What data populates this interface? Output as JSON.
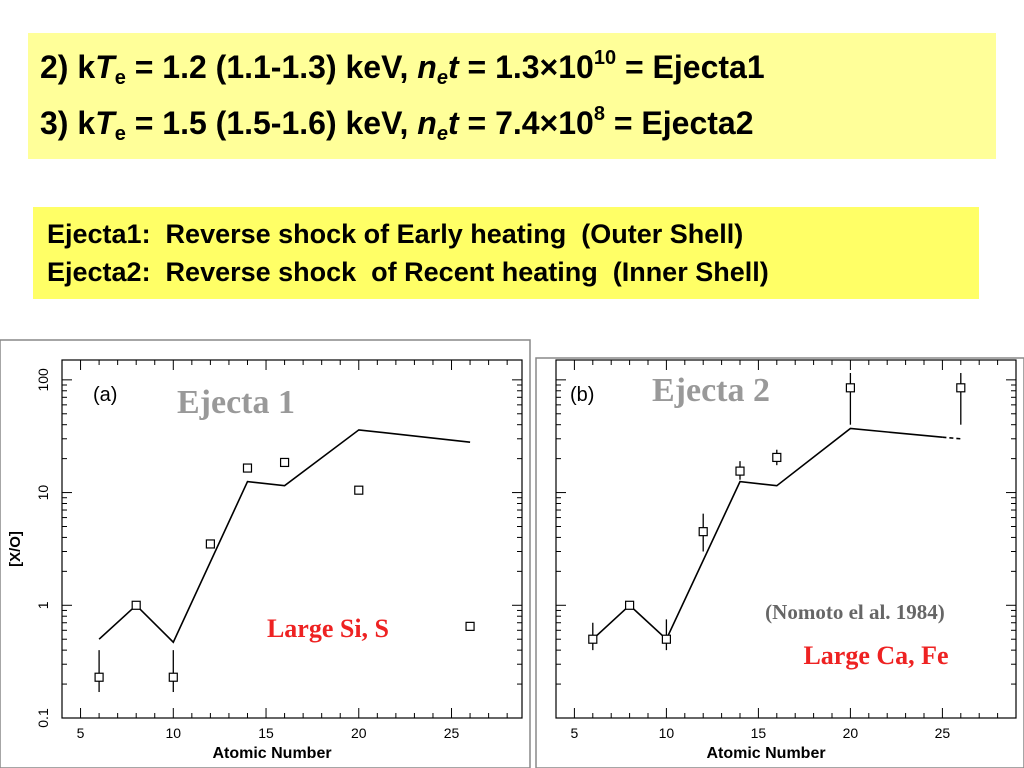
{
  "slide": {
    "line1": {
      "prefix": "2) k",
      "T": "T",
      "e_sub": "e",
      "value": " = 1.2 (1.1-1.3) keV, ",
      "n": "n",
      "n_sub": "e",
      "t": "t",
      "eq": " = 1.3",
      "times": "×",
      "base": "10",
      "exp": "10",
      "tail": " = Ejecta1"
    },
    "line2": {
      "prefix": "3) k",
      "T": "T",
      "e_sub": "e",
      "value": " = 1.5 (1.5-1.6) keV, ",
      "n": "n",
      "n_sub": "e",
      "t": "t",
      "eq": " = 7.4",
      "times": "×",
      "base": "10",
      "exp": "8",
      "tail": "  = Ejecta2"
    },
    "ejecta1_desc": "Ejecta1:  Reverse shock of Early heating  (Outer Shell)",
    "ejecta2_desc": "Ejecta2:  Reverse shock  of Recent heating  (Inner Shell)",
    "colors": {
      "box_top": "#ffff99",
      "box_mid": "#ffff66",
      "annotation": "#ee2222",
      "title": "#999999"
    }
  },
  "chart_data": [
    {
      "type": "scatter",
      "panel_label": "(a)",
      "title": "Ejecta 1",
      "xlabel": "Atomic Number",
      "ylabel": "[X/O]",
      "yscale": "log",
      "xlim": [
        4,
        28.8
      ],
      "ylim": [
        0.1,
        150
      ],
      "xticks": [
        5,
        10,
        15,
        20,
        25
      ],
      "yticks": [
        0.1,
        1,
        10,
        100
      ],
      "ytick_labels": [
        "0.1",
        "1",
        "10",
        "100"
      ],
      "annotation": "Large Si, S",
      "points": [
        {
          "x": 6,
          "y": 0.23,
          "lo": 0.17,
          "hi": 0.4
        },
        {
          "x": 8,
          "y": 1.0
        },
        {
          "x": 10,
          "y": 0.23,
          "lo": 0.17,
          "hi": 0.4
        },
        {
          "x": 12,
          "y": 3.5
        },
        {
          "x": 14,
          "y": 16.5
        },
        {
          "x": 16,
          "y": 18.5
        },
        {
          "x": 20,
          "y": 10.5
        },
        {
          "x": 26,
          "y": 0.65
        }
      ],
      "model": {
        "x": [
          6,
          8,
          10,
          14,
          16,
          20,
          26
        ],
        "y": [
          0.5,
          1.0,
          0.47,
          12.5,
          11.5,
          36,
          28
        ]
      }
    },
    {
      "type": "scatter",
      "panel_label": "(b)",
      "title": "Ejecta 2",
      "xlabel": "Atomic Number",
      "yscale": "log",
      "xlim": [
        4,
        29
      ],
      "ylim": [
        0.1,
        150
      ],
      "xticks": [
        5,
        10,
        15,
        20,
        25
      ],
      "annotation": "Large Ca, Fe",
      "reference": "(Nomoto el al. 1984)",
      "points": [
        {
          "x": 6,
          "y": 0.5,
          "lo": 0.4,
          "hi": 0.7
        },
        {
          "x": 8,
          "y": 1.0
        },
        {
          "x": 10,
          "y": 0.5,
          "lo": 0.4,
          "hi": 0.75
        },
        {
          "x": 12,
          "y": 4.5,
          "lo": 3.0,
          "hi": 6.5
        },
        {
          "x": 14,
          "y": 15.5,
          "lo": 13,
          "hi": 19
        },
        {
          "x": 16,
          "y": 20.5,
          "lo": 17.5,
          "hi": 24
        },
        {
          "x": 20,
          "y": 85,
          "lo": 40,
          "hi": 115
        },
        {
          "x": 26,
          "y": 85,
          "lo": 40,
          "hi": 115
        }
      ],
      "model": {
        "x": [
          6,
          8,
          10,
          14,
          16,
          20,
          25
        ],
        "y": [
          0.5,
          1.0,
          0.5,
          12.5,
          11.5,
          37,
          31
        ]
      },
      "model_tail": {
        "x": [
          25,
          26
        ],
        "y": [
          31,
          30
        ]
      }
    }
  ]
}
